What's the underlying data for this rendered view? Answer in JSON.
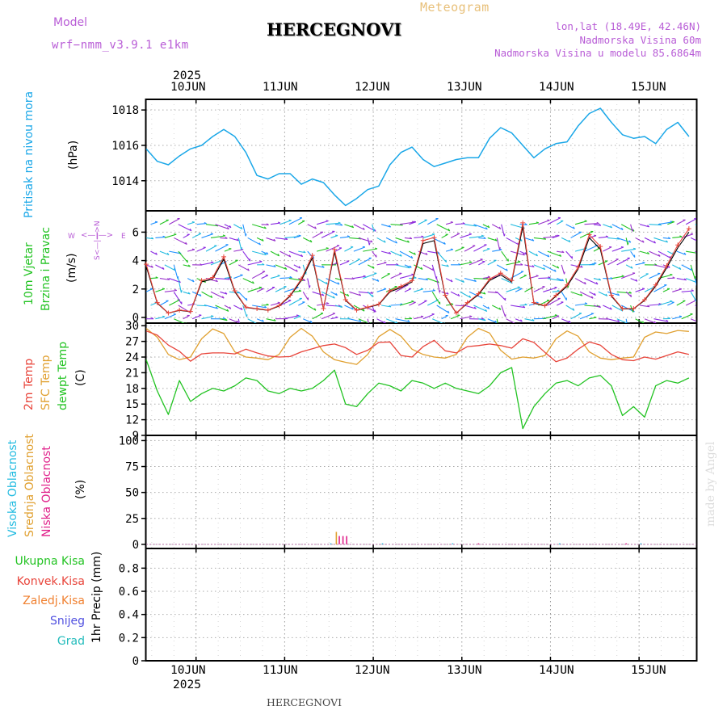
{
  "header": {
    "model_label": "Model",
    "model_name": "wrf−nmm_v3.9.1  e1km",
    "title": "HERCEGNOVI",
    "subtitle": "Meteogram",
    "lonlat": "lon,lat (18.49E, 42.46N)",
    "elevation": "Nadmorska Visina 60m",
    "model_elevation": "Nadmorska Visina u modelu 85.6864m",
    "footer_title": "HERCEGNOVI",
    "watermark": "made by Angel"
  },
  "colors": {
    "pressure": "#1aa7e8",
    "temp2m": "#e8443a",
    "sfc_temp": "#e0a030",
    "dewpoint": "#22c322",
    "wind_speed": "#000000",
    "wind_gust_marker": "#e8443a",
    "cloud_high": "#22bbe0",
    "cloud_mid": "#e0a030",
    "cloud_low": "#e0208a"
  },
  "chart_data": [
    {
      "type": "line",
      "panel": "pressure",
      "ylabel_lines": [
        "Pritisak na nivou mora",
        "(hPa)"
      ],
      "ylim": [
        1012.3,
        1018.6
      ],
      "yticks": [
        1014,
        1016,
        1018
      ],
      "grid": true,
      "x_hours": [
        0,
        3,
        6,
        9,
        12,
        15,
        18,
        21,
        24,
        27,
        30,
        33,
        36,
        39,
        42,
        45,
        48,
        51,
        54,
        57,
        60,
        63,
        66,
        69,
        72,
        75,
        78,
        81,
        84,
        87,
        90,
        93,
        96,
        99,
        102,
        105,
        108,
        111,
        114,
        117,
        120,
        123,
        126,
        129,
        132,
        135,
        138,
        141,
        144,
        147
      ],
      "series": [
        {
          "values": [
            1015.8,
            1015.1,
            1014.9,
            1015.4,
            1015.8,
            1016.0,
            1016.5,
            1016.9,
            1016.5,
            1015.6,
            1014.3,
            1014.1,
            1014.4,
            1014.4,
            1013.8,
            1014.1,
            1013.9,
            1013.2,
            1012.6,
            1013.0,
            1013.5,
            1013.7,
            1014.9,
            1015.6,
            1015.9,
            1015.2,
            1014.8,
            1015.0,
            1015.2,
            1015.3,
            1015.3,
            1016.4,
            1017.0,
            1016.7,
            1016.0,
            1015.3,
            1015.8,
            1016.1,
            1016.2,
            1017.1,
            1017.8,
            1018.1,
            1017.3,
            1016.6,
            1016.4,
            1016.5,
            1016.1,
            1016.9,
            1017.3,
            1016.5
          ]
        }
      ]
    },
    {
      "type": "line",
      "panel": "wind",
      "ylabel_lines": [
        "10m Vjetar",
        "Brzina i Pravac",
        "(m/s)"
      ],
      "compass_labels": [
        "W",
        "E",
        "N",
        "S"
      ],
      "ylim": [
        -0.4,
        7.5
      ],
      "yticks": [
        0,
        2,
        4,
        6
      ],
      "grid": true,
      "x_hours": [
        0,
        3,
        6,
        9,
        12,
        15,
        18,
        21,
        24,
        27,
        30,
        33,
        36,
        39,
        42,
        45,
        48,
        51,
        54,
        57,
        60,
        63,
        66,
        69,
        72,
        75,
        78,
        81,
        84,
        87,
        90,
        93,
        96,
        99,
        102,
        105,
        108,
        111,
        114,
        117,
        120,
        123,
        126,
        129,
        132,
        135,
        138,
        141,
        144,
        147
      ],
      "series": [
        {
          "name": "speed",
          "values": [
            3.6,
            1.0,
            0.3,
            0.5,
            0.4,
            2.5,
            2.7,
            4.1,
            1.8,
            0.7,
            0.6,
            0.5,
            0.8,
            1.5,
            2.6,
            4.2,
            0.6,
            4.6,
            1.2,
            0.5,
            0.7,
            0.9,
            1.8,
            2.1,
            2.5,
            5.2,
            5.4,
            1.5,
            0.3,
            1.0,
            1.6,
            2.6,
            3.0,
            2.5,
            6.4,
            1.0,
            0.8,
            1.5,
            2.2,
            3.4,
            5.6,
            4.8,
            1.5,
            0.6,
            0.6,
            1.2,
            2.2,
            3.5,
            4.9,
            6.0
          ]
        }
      ]
    },
    {
      "type": "line",
      "panel": "temperature",
      "ylabel_lines": [
        "2m Temp",
        "SFC Temp",
        "dewpt Temp",
        "(C)"
      ],
      "ylim": [
        9,
        30.5
      ],
      "yticks": [
        9,
        12,
        15,
        18,
        21,
        24,
        27,
        30
      ],
      "grid": true,
      "x_hours": [
        0,
        3,
        6,
        9,
        12,
        15,
        18,
        21,
        24,
        27,
        30,
        33,
        36,
        39,
        42,
        45,
        48,
        51,
        54,
        57,
        60,
        63,
        66,
        69,
        72,
        75,
        78,
        81,
        84,
        87,
        90,
        93,
        96,
        99,
        102,
        105,
        108,
        111,
        114,
        117,
        120,
        123,
        126,
        129,
        132,
        135,
        138,
        141,
        144,
        147
      ],
      "series": [
        {
          "name": "2m Temp",
          "values": [
            29.0,
            28.2,
            26.3,
            25.1,
            23.2,
            24.6,
            24.8,
            24.8,
            24.6,
            25.5,
            24.8,
            24.2,
            24.0,
            24.1,
            25.0,
            25.6,
            26.2,
            26.5,
            25.8,
            24.5,
            25.3,
            26.8,
            26.9,
            24.3,
            24.0,
            26.0,
            27.2,
            25.2,
            24.8,
            26.0,
            26.2,
            26.5,
            26.2,
            25.7,
            27.5,
            26.8,
            24.9,
            23.1,
            23.8,
            25.5,
            26.9,
            26.3,
            24.5,
            23.5,
            23.3,
            24.0,
            23.6,
            24.3,
            25.0,
            24.5
          ]
        },
        {
          "name": "SFC Temp",
          "values": [
            29.5,
            27.8,
            24.5,
            23.5,
            24.0,
            27.5,
            29.4,
            28.5,
            25.0,
            24.0,
            23.8,
            23.5,
            24.5,
            27.8,
            29.5,
            28.0,
            25.0,
            23.5,
            23.0,
            22.6,
            24.5,
            27.9,
            29.3,
            28.0,
            25.5,
            24.5,
            24.0,
            23.8,
            24.5,
            27.8,
            29.5,
            28.6,
            25.3,
            23.6,
            24.0,
            23.8,
            24.3,
            27.5,
            29.0,
            28.0,
            25.0,
            23.8,
            23.5,
            23.8,
            24.0,
            27.8,
            28.8,
            28.5,
            29.1,
            28.9
          ]
        },
        {
          "name": "dewpt Temp",
          "values": [
            23.5,
            17.5,
            13.0,
            19.5,
            15.5,
            17.0,
            18.0,
            17.5,
            18.5,
            20.0,
            19.5,
            17.5,
            17.0,
            18.0,
            17.5,
            18.0,
            19.5,
            21.5,
            15.0,
            14.5,
            17.0,
            19.0,
            18.5,
            17.5,
            19.5,
            19.0,
            18.0,
            19.0,
            18.0,
            17.5,
            17.0,
            18.5,
            21.0,
            22.0,
            10.3,
            14.5,
            17.0,
            19.0,
            19.5,
            18.5,
            20.0,
            20.5,
            18.5,
            12.8,
            14.5,
            12.5,
            18.5,
            19.5,
            19.0,
            20.0
          ]
        }
      ]
    },
    {
      "type": "bar",
      "panel": "clouds",
      "ylabel_lines": [
        "Visoka Oblacnost",
        "Srednja Oblacnost",
        "Niska Oblacnost",
        "(%)"
      ],
      "ylim": [
        -4,
        105
      ],
      "yticks": [
        0,
        25,
        50,
        75,
        100
      ],
      "grid": true,
      "series": [
        {
          "name": "Visoka Oblacnost",
          "points": [
            [
              50,
              1
            ],
            [
              64,
              1
            ],
            [
              83,
              1
            ],
            [
              112,
              1
            ],
            [
              134,
              1
            ]
          ]
        },
        {
          "name": "Srednja Oblacnost",
          "points": [
            [
              51.5,
              12
            ]
          ]
        },
        {
          "name": "Niska Oblacnost",
          "points": [
            [
              52.3,
              8
            ],
            [
              53.3,
              8
            ],
            [
              54.3,
              8
            ],
            [
              90,
              1
            ],
            [
              130,
              1
            ]
          ]
        }
      ]
    },
    {
      "type": "bar",
      "panel": "precip",
      "ylabel_lines": [
        "1hr Precip (mm)"
      ],
      "legend_labels": [
        "Ukupna  Kisa",
        "Konvek.Kisa",
        "Zaledj.Kisa",
        "Snijeg",
        "Grad"
      ],
      "ylim": [
        0,
        0.97
      ],
      "yticks": [
        0,
        0.2,
        0.4,
        0.6,
        0.8
      ],
      "grid": true,
      "series": []
    }
  ],
  "x_axis": {
    "top_year": "2025",
    "bottom_year": "2025",
    "days": [
      "10JUN",
      "11JUN",
      "12JUN",
      "13JUN",
      "14JUN",
      "15JUN"
    ]
  }
}
